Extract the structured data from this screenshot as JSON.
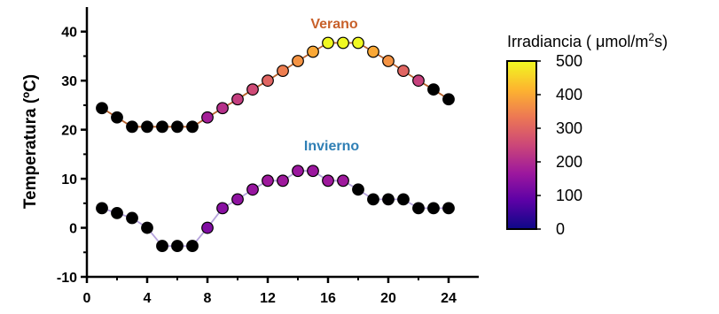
{
  "chart_data": {
    "type": "scatter",
    "ylabel": "Temperatura (ºC)",
    "xlabel": "",
    "xlim": [
      0,
      26
    ],
    "ylim": [
      -10,
      45
    ],
    "x_ticks": [
      0,
      4,
      8,
      12,
      16,
      20,
      24
    ],
    "y_ticks": [
      -10,
      0,
      10,
      20,
      30,
      40
    ],
    "grid": false,
    "series": [
      {
        "name": "Verano",
        "label_color": "#c8602a",
        "line_color": "#b5602c",
        "points": [
          {
            "x": 1,
            "y": 24.4,
            "irr": 0
          },
          {
            "x": 2,
            "y": 22.5,
            "irr": 0
          },
          {
            "x": 3,
            "y": 20.6,
            "irr": 0
          },
          {
            "x": 4,
            "y": 20.6,
            "irr": 0
          },
          {
            "x": 5,
            "y": 20.6,
            "irr": 0
          },
          {
            "x": 6,
            "y": 20.6,
            "irr": 0
          },
          {
            "x": 7,
            "y": 20.6,
            "irr": 0
          },
          {
            "x": 8,
            "y": 22.5,
            "irr": 180
          },
          {
            "x": 9,
            "y": 24.4,
            "irr": 210
          },
          {
            "x": 10,
            "y": 26.2,
            "irr": 235
          },
          {
            "x": 11,
            "y": 28.2,
            "irr": 255
          },
          {
            "x": 12,
            "y": 30.0,
            "irr": 300
          },
          {
            "x": 13,
            "y": 32.0,
            "irr": 340
          },
          {
            "x": 14,
            "y": 34.0,
            "irr": 370
          },
          {
            "x": 15,
            "y": 35.9,
            "irr": 400
          },
          {
            "x": 16,
            "y": 37.7,
            "irr": 500
          },
          {
            "x": 17,
            "y": 37.7,
            "irr": 500
          },
          {
            "x": 18,
            "y": 37.7,
            "irr": 500
          },
          {
            "x": 19,
            "y": 35.9,
            "irr": 400
          },
          {
            "x": 20,
            "y": 34.0,
            "irr": 370
          },
          {
            "x": 21,
            "y": 32.0,
            "irr": 300
          },
          {
            "x": 22,
            "y": 30.0,
            "irr": 240
          },
          {
            "x": 23,
            "y": 28.2,
            "irr": 0
          },
          {
            "x": 24,
            "y": 26.2,
            "irr": 0
          }
        ]
      },
      {
        "name": "Invierno",
        "label_color": "#2f7fb5",
        "line_color": "#b5a3dc",
        "points": [
          {
            "x": 1,
            "y": 4.0,
            "irr": 0
          },
          {
            "x": 2,
            "y": 3.0,
            "irr": 0
          },
          {
            "x": 3,
            "y": 2.0,
            "irr": 0
          },
          {
            "x": 4,
            "y": 0.0,
            "irr": 0
          },
          {
            "x": 5,
            "y": -3.7,
            "irr": 0
          },
          {
            "x": 6,
            "y": -3.7,
            "irr": 0
          },
          {
            "x": 7,
            "y": -3.7,
            "irr": 0
          },
          {
            "x": 8,
            "y": 0.0,
            "irr": 130
          },
          {
            "x": 9,
            "y": 4.0,
            "irr": 140
          },
          {
            "x": 10,
            "y": 5.8,
            "irr": 150
          },
          {
            "x": 11,
            "y": 7.8,
            "irr": 160
          },
          {
            "x": 12,
            "y": 9.6,
            "irr": 170
          },
          {
            "x": 13,
            "y": 9.6,
            "irr": 170
          },
          {
            "x": 14,
            "y": 11.6,
            "irr": 165
          },
          {
            "x": 15,
            "y": 11.6,
            "irr": 165
          },
          {
            "x": 16,
            "y": 9.6,
            "irr": 170
          },
          {
            "x": 17,
            "y": 9.6,
            "irr": 170
          },
          {
            "x": 18,
            "y": 7.8,
            "irr": 0
          },
          {
            "x": 19,
            "y": 5.8,
            "irr": 0
          },
          {
            "x": 20,
            "y": 5.8,
            "irr": 0
          },
          {
            "x": 21,
            "y": 5.8,
            "irr": 0
          },
          {
            "x": 22,
            "y": 4.0,
            "irr": 0
          },
          {
            "x": 23,
            "y": 4.0,
            "irr": 0
          },
          {
            "x": 24,
            "y": 4.0,
            "irr": 0
          }
        ]
      }
    ],
    "colorbar": {
      "title": "Irradiancia ( μmol/m",
      "title_sup": "2",
      "title_end": "s)",
      "range": [
        0,
        500
      ],
      "ticks": [
        0,
        100,
        200,
        300,
        400,
        500
      ],
      "colormap": "plasma",
      "stops": [
        "#0d0887",
        "#5c01a6",
        "#9c179e",
        "#cc4778",
        "#ed7953",
        "#fdb42f",
        "#f0f921"
      ]
    }
  }
}
